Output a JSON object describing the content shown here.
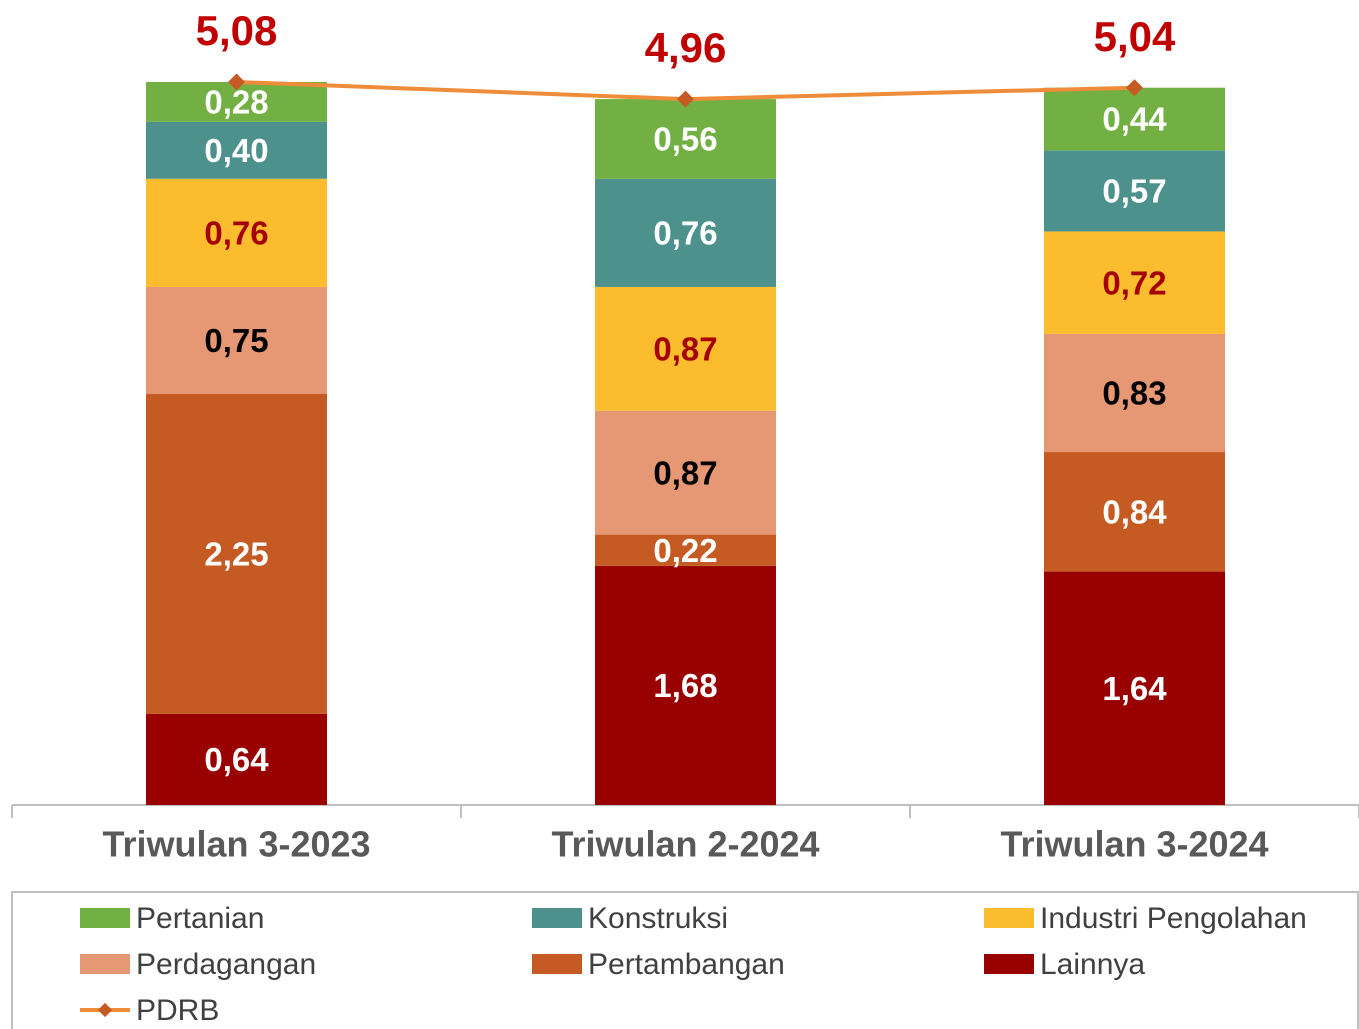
{
  "chart_data": {
    "type": "bar",
    "stacked": true,
    "categories": [
      "Triwulan 3-2023",
      "Triwulan 2-2024",
      "Triwulan 3-2024"
    ],
    "ylim": [
      0,
      5.6
    ],
    "series": [
      {
        "name": "Lainnya",
        "color": "#990000",
        "label_color": "#ffffff",
        "values": [
          0.64,
          1.68,
          1.64
        ],
        "value_labels": [
          "0,64",
          "1,68",
          "1,64"
        ]
      },
      {
        "name": "Pertambangan",
        "color": "#c55a22",
        "label_color": "#ffffff",
        "values": [
          2.25,
          0.22,
          0.84
        ],
        "value_labels": [
          "2,25",
          "0,22",
          "0,84"
        ]
      },
      {
        "name": "Perdagangan",
        "color": "#e59873",
        "label_color": "#000000",
        "values": [
          0.75,
          0.87,
          0.83
        ],
        "value_labels": [
          "0,75",
          "0,87",
          "0,83"
        ]
      },
      {
        "name": "Industri Pengolahan",
        "color": "#fbbc2d",
        "label_color": "#a50000",
        "values": [
          0.76,
          0.87,
          0.72
        ],
        "value_labels": [
          "0,76",
          "0,87",
          "0,72"
        ]
      },
      {
        "name": "Konstruksi",
        "color": "#4d918d",
        "label_color": "#ffffff",
        "values": [
          0.4,
          0.76,
          0.57
        ],
        "value_labels": [
          "0,40",
          "0,76",
          "0,57"
        ]
      },
      {
        "name": "Pertanian",
        "color": "#72b043",
        "label_color": "#ffffff",
        "values": [
          0.28,
          0.56,
          0.44
        ],
        "value_labels": [
          "0,28",
          "0,56",
          "0,44"
        ]
      },
      {
        "name": "PDRB",
        "type": "line",
        "color": "#ee8c3a",
        "label_color": "#c00000",
        "values": [
          5.08,
          4.96,
          5.04
        ],
        "value_labels": [
          "5,08",
          "4,96",
          "5,04"
        ]
      }
    ]
  }
}
